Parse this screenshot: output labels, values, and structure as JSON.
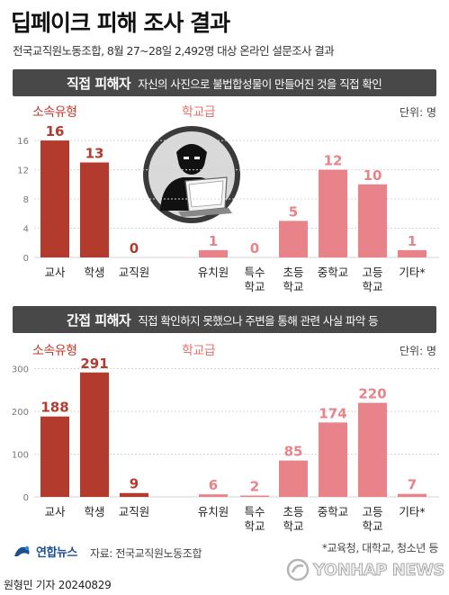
{
  "header": {
    "title": "딥페이크 피해 조사 결과",
    "subtitle": "전국교직원노동조합, 8월 27~28일 2,492명 대상 온라인 설문조사 결과"
  },
  "sections": [
    {
      "title": "직접 피해자",
      "description": "자신의 사진으로 불법합성물이 만들어진 것을 직접 확인",
      "group_dark": "소속유형",
      "group_light": "학교급",
      "unit": "단위: 명"
    },
    {
      "title": "간접 피해자",
      "description": "직접 확인하지 못했으나 주변을 통해 관련 사실 파악 등",
      "group_dark": "소속유형",
      "group_light": "학교급",
      "unit": "단위: 명"
    }
  ],
  "chart_data": [
    {
      "type": "bar",
      "title": "직접 피해자",
      "categories": [
        "교사",
        "학생",
        "교직원",
        "유치원",
        "특수 학교",
        "초등 학교",
        "중학교",
        "고등 학교",
        "기타*"
      ],
      "values": [
        16,
        13,
        0,
        1,
        0,
        5,
        12,
        10,
        1
      ],
      "groups": [
        "소속유형",
        "소속유형",
        "소속유형",
        "학교급",
        "학교급",
        "학교급",
        "학교급",
        "학교급",
        "학교급"
      ],
      "yticks": [
        0,
        4,
        8,
        12,
        16
      ],
      "ylim": [
        0,
        17
      ],
      "grid": true,
      "colors": {
        "소속유형": "#b33b2e",
        "학교급": "#e8838a"
      }
    },
    {
      "type": "bar",
      "title": "간접 피해자",
      "categories": [
        "교사",
        "학생",
        "교직원",
        "유치원",
        "특수 학교",
        "초등 학교",
        "중학교",
        "고등 학교",
        "기타*"
      ],
      "values": [
        188,
        291,
        9,
        6,
        2,
        85,
        174,
        220,
        7
      ],
      "groups": [
        "소속유형",
        "소속유형",
        "소속유형",
        "학교급",
        "학교급",
        "학교급",
        "학교급",
        "학교급",
        "학교급"
      ],
      "yticks": [
        0,
        100,
        200,
        300
      ],
      "ylim": [
        0,
        320
      ],
      "grid": true,
      "colors": {
        "소속유형": "#b33b2e",
        "학교급": "#e8838a"
      }
    }
  ],
  "footer": {
    "logo_text": "연합뉴스",
    "source": "자료: 전국교직원노동조합",
    "footnote": "*교육청, 대학교, 청소년 등",
    "reporter": "원형민 기자  20240829",
    "watermark": "YONHAP NEWS"
  }
}
